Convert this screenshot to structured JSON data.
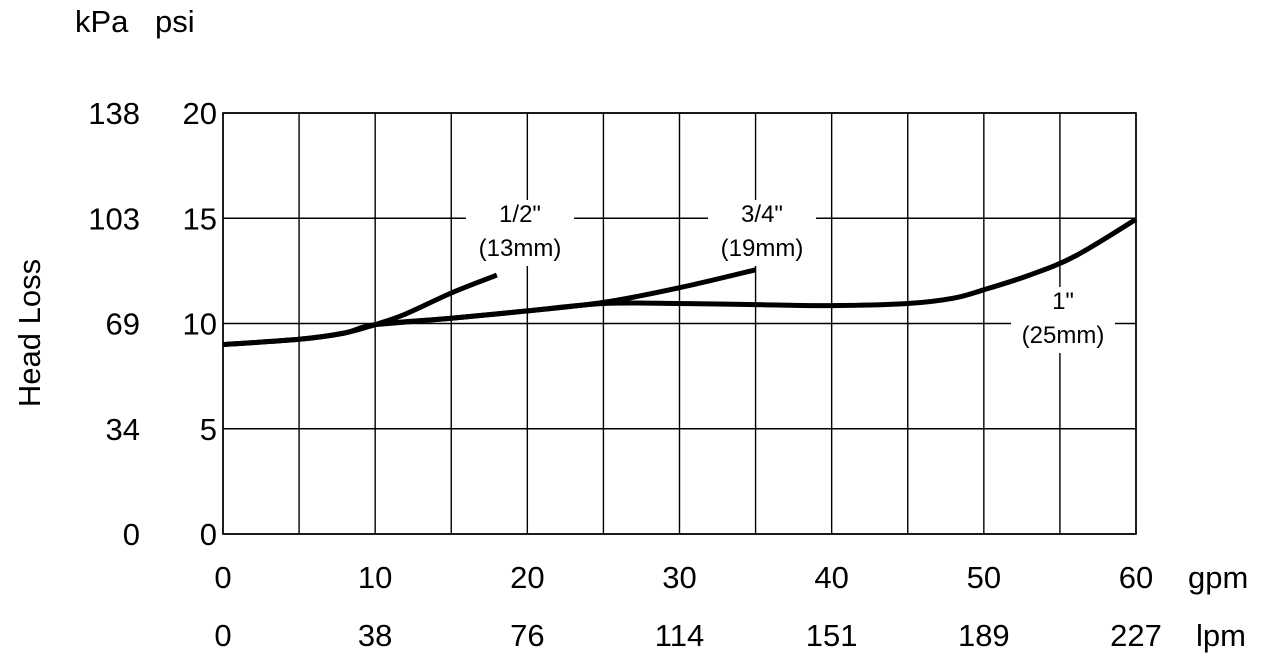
{
  "chart_data": {
    "type": "line",
    "title": "",
    "ylabel": "Head Loss",
    "xlim": [
      0,
      60
    ],
    "ylim": [
      0,
      20
    ],
    "grid": true,
    "x_ticks": [
      0,
      5,
      10,
      15,
      20,
      25,
      30,
      35,
      40,
      45,
      50,
      55,
      60
    ],
    "y_ticks": [
      0,
      5,
      10,
      15,
      20
    ],
    "x_axis_gpm": {
      "unit": "gpm",
      "tick_labels": [
        {
          "x": 0,
          "label": "0"
        },
        {
          "x": 10,
          "label": "10"
        },
        {
          "x": 20,
          "label": "20"
        },
        {
          "x": 30,
          "label": "30"
        },
        {
          "x": 40,
          "label": "40"
        },
        {
          "x": 50,
          "label": "50"
        },
        {
          "x": 60,
          "label": "60"
        }
      ]
    },
    "x_axis_lpm": {
      "unit": "lpm",
      "tick_labels": [
        {
          "x": 0,
          "label": "0"
        },
        {
          "x": 10,
          "label": "38"
        },
        {
          "x": 20,
          "label": "76"
        },
        {
          "x": 30,
          "label": "114"
        },
        {
          "x": 40,
          "label": "151"
        },
        {
          "x": 50,
          "label": "189"
        },
        {
          "x": 60,
          "label": "227"
        }
      ]
    },
    "y_axis_psi": {
      "unit": "psi",
      "tick_labels": [
        {
          "y": 0,
          "label": "0"
        },
        {
          "y": 5,
          "label": "5"
        },
        {
          "y": 10,
          "label": "10"
        },
        {
          "y": 15,
          "label": "15"
        },
        {
          "y": 20,
          "label": "20"
        }
      ]
    },
    "y_axis_kpa": {
      "unit": "kPa",
      "tick_labels": [
        {
          "y": 0,
          "label": "0"
        },
        {
          "y": 5,
          "label": "34"
        },
        {
          "y": 10,
          "label": "69"
        },
        {
          "y": 15,
          "label": "103"
        },
        {
          "y": 20,
          "label": "138"
        }
      ]
    },
    "series": [
      {
        "label_lines": [
          "1/2\"",
          "(13mm)"
        ],
        "points": [
          [
            0,
            9.0
          ],
          [
            5,
            9.25
          ],
          [
            8,
            9.55
          ],
          [
            10,
            9.95
          ],
          [
            12,
            10.45
          ],
          [
            15,
            11.45
          ],
          [
            18,
            12.3
          ]
        ]
      },
      {
        "label_lines": [
          "3/4\"",
          "(19mm)"
        ],
        "points": [
          [
            10,
            9.95
          ],
          [
            15,
            10.25
          ],
          [
            20,
            10.6
          ],
          [
            25,
            11.0
          ],
          [
            30,
            11.7
          ],
          [
            35,
            12.55
          ]
        ]
      },
      {
        "label_lines": [
          "1\"",
          "(25mm)"
        ],
        "points": [
          [
            0,
            9.0
          ],
          [
            5,
            9.25
          ],
          [
            8,
            9.55
          ],
          [
            10,
            9.95
          ],
          [
            15,
            10.25
          ],
          [
            20,
            10.6
          ],
          [
            25,
            10.95
          ],
          [
            30,
            10.95
          ],
          [
            35,
            10.9
          ],
          [
            40,
            10.85
          ],
          [
            45,
            10.95
          ],
          [
            48,
            11.2
          ],
          [
            50,
            11.6
          ],
          [
            53,
            12.3
          ],
          [
            56,
            13.2
          ],
          [
            60,
            14.95
          ]
        ]
      }
    ]
  }
}
